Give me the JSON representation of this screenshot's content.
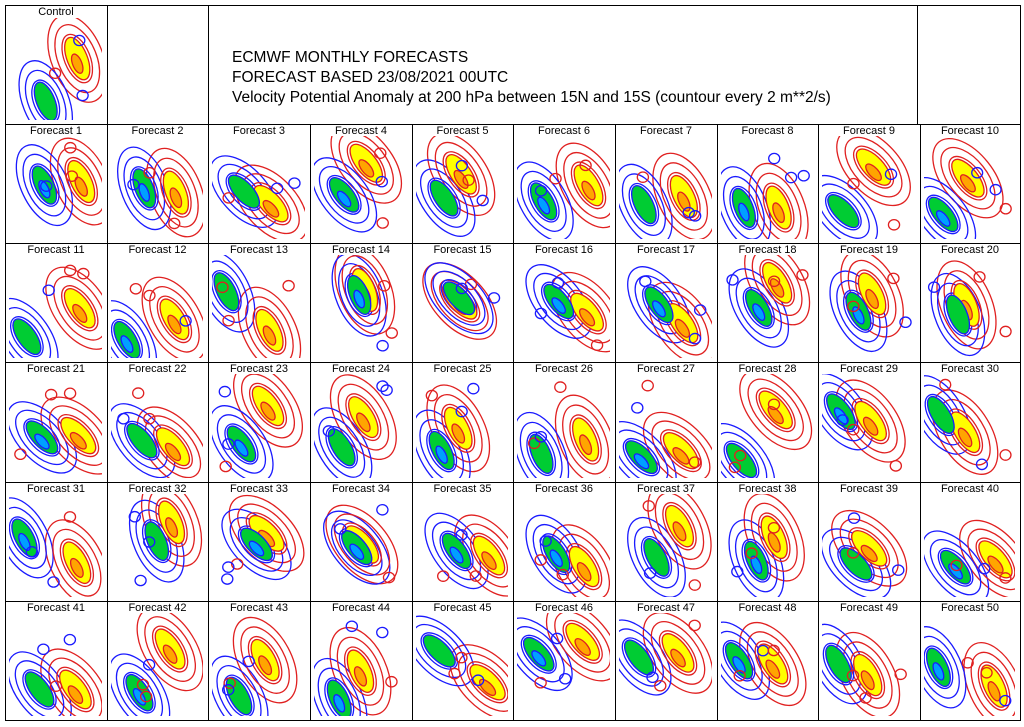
{
  "header": {
    "line1": "ECMWF MONTHLY FORECASTS",
    "line2": "FORECAST  BASED 23/08/2021 00UTC",
    "line3": "Velocity Potential Anomaly at 200 hPa between 15N and 15S (countour every 2 m**2/s)"
  },
  "control": {
    "label": "Control"
  },
  "forecasts": [
    "Forecast  1",
    "Forecast  2",
    "Forecast  3",
    "Forecast  4",
    "Forecast  5",
    "Forecast  6",
    "Forecast  7",
    "Forecast  8",
    "Forecast  9",
    "Forecast 10",
    "Forecast 11",
    "Forecast 12",
    "Forecast 13",
    "Forecast 14",
    "Forecast 15",
    "Forecast 16",
    "Forecast 17",
    "Forecast 18",
    "Forecast 19",
    "Forecast 20",
    "Forecast 21",
    "Forecast 22",
    "Forecast 23",
    "Forecast 24",
    "Forecast 25",
    "Forecast 26",
    "Forecast 27",
    "Forecast 28",
    "Forecast 29",
    "Forecast 30",
    "Forecast 31",
    "Forecast 32",
    "Forecast 33",
    "Forecast 34",
    "Forecast 35",
    "Forecast 36",
    "Forecast 37",
    "Forecast 38",
    "Forecast 39",
    "Forecast 40",
    "Forecast 41",
    "Forecast 42",
    "Forecast 43",
    "Forecast 44",
    "Forecast 45",
    "Forecast 46",
    "Forecast 47",
    "Forecast 48",
    "Forecast 49",
    "Forecast 50"
  ],
  "colors": {
    "positive_line": "#e02020",
    "positive_fill_1": "#ffff00",
    "positive_fill_2": "#ffa500",
    "negative_line": "#1a1aff",
    "negative_fill_1": "#00cc33",
    "negative_fill_2": "#00a0ff"
  },
  "chart_data": {
    "type": "heatmap",
    "title": "Velocity Potential Anomaly at 200 hPa between 15N and 15S (countour every 2 m**2/s)",
    "contour_interval": "2 m**2/s",
    "members": 51
  }
}
